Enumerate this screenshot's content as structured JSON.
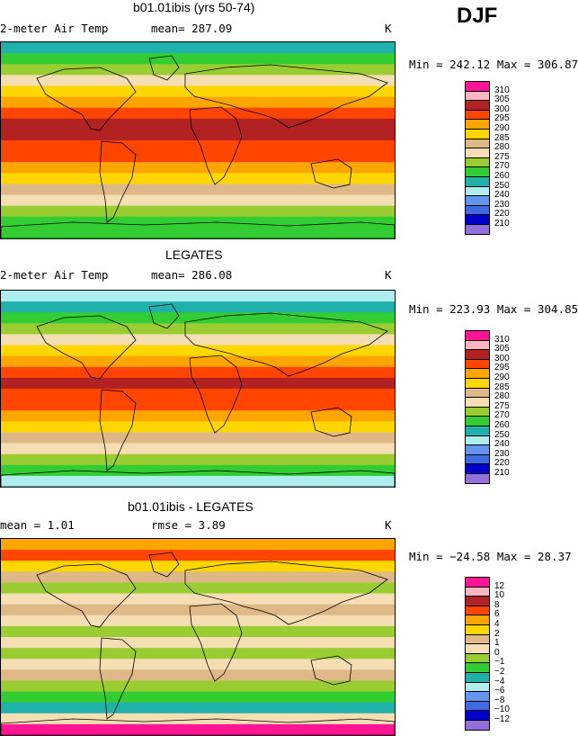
{
  "season": "DJF",
  "panels": [
    {
      "title": "b01.01ibis (yrs 50-74)",
      "left_label": "2-meter Air Temp",
      "stat_label": "mean= 287.09",
      "stat2_label": "",
      "units": "K",
      "minmax": "Min = 242.12 Max = 306.87",
      "legend_labels": [
        "310",
        "305",
        "300",
        "295",
        "290",
        "285",
        "280",
        "275",
        "270",
        "260",
        "250",
        "240",
        "230",
        "220",
        "210"
      ],
      "legend_colors": [
        "#ff1493",
        "#ffb6c1",
        "#b22222",
        "#ff4500",
        "#ffa500",
        "#ffd700",
        "#deb887",
        "#f5deb3",
        "#9acd32",
        "#32cd32",
        "#20b2aa",
        "#afeeee",
        "#6495ed",
        "#4169e1",
        "#0000cd",
        "#9370db"
      ]
    },
    {
      "title": "LEGATES",
      "left_label": "2-meter Air Temp",
      "stat_label": "mean= 286.08",
      "stat2_label": "",
      "units": "K",
      "minmax": "Min = 223.93 Max = 304.85",
      "legend_labels": [
        "310",
        "305",
        "300",
        "295",
        "290",
        "285",
        "280",
        "275",
        "270",
        "260",
        "250",
        "240",
        "230",
        "220",
        "210"
      ],
      "legend_colors": [
        "#ff1493",
        "#ffb6c1",
        "#b22222",
        "#ff4500",
        "#ffa500",
        "#ffd700",
        "#deb887",
        "#f5deb3",
        "#9acd32",
        "#32cd32",
        "#20b2aa",
        "#afeeee",
        "#6495ed",
        "#4169e1",
        "#0000cd",
        "#9370db"
      ]
    },
    {
      "title": "b01.01ibis - LEGATES",
      "left_label": "mean =    1.01",
      "stat_label": "rmse =    3.89",
      "stat2_label": "",
      "units": "K",
      "minmax": "Min = −24.58 Max =  28.37",
      "legend_labels": [
        "12",
        "10",
        "8",
        "6",
        "4",
        "2",
        "1",
        "0",
        "−1",
        "−2",
        "−4",
        "−6",
        "−8",
        "−10",
        "−12"
      ],
      "legend_colors": [
        "#ff1493",
        "#ffb6c1",
        "#b22222",
        "#ff4500",
        "#ffa500",
        "#ffd700",
        "#deb887",
        "#f5deb3",
        "#9acd32",
        "#32cd32",
        "#20b2aa",
        "#afeeee",
        "#6495ed",
        "#4169e1",
        "#0000cd",
        "#9370db"
      ]
    }
  ],
  "chart_data": [
    {
      "type": "heatmap",
      "title": "b01.01ibis (yrs 50-74)",
      "xlabel": "",
      "ylabel": "",
      "variable": "2-meter Air Temp",
      "units": "K",
      "mean": 287.09,
      "min": 242.12,
      "max": 306.87,
      "contour_levels": [
        210,
        220,
        230,
        240,
        250,
        260,
        270,
        275,
        280,
        285,
        290,
        295,
        300,
        305,
        310
      ],
      "band_values_pole_to_pole": [
        250,
        262,
        272,
        278,
        285,
        292,
        297,
        300,
        301,
        299,
        296,
        292,
        287,
        282,
        276,
        272,
        268,
        262
      ]
    },
    {
      "type": "heatmap",
      "title": "LEGATES",
      "xlabel": "",
      "ylabel": "",
      "variable": "2-meter Air Temp",
      "units": "K",
      "mean": 286.08,
      "min": 223.93,
      "max": 304.85,
      "contour_levels": [
        210,
        220,
        230,
        240,
        250,
        260,
        270,
        275,
        280,
        285,
        290,
        295,
        300,
        305,
        310
      ],
      "band_values_pole_to_pole": [
        243,
        252,
        262,
        270,
        278,
        286,
        293,
        298,
        300,
        299,
        296,
        291,
        286,
        281,
        276,
        270,
        262,
        248
      ]
    },
    {
      "type": "heatmap",
      "title": "b01.01ibis - LEGATES",
      "xlabel": "",
      "ylabel": "",
      "units": "K",
      "mean": 1.01,
      "rmse": 3.89,
      "min": -24.58,
      "max": 28.37,
      "contour_levels": [
        -12,
        -10,
        -8,
        -6,
        -4,
        -2,
        -1,
        0,
        1,
        2,
        4,
        6,
        8,
        10,
        12
      ],
      "band_values_pole_to_pole": [
        5,
        7,
        3,
        1,
        -1,
        0,
        1,
        0,
        -1,
        0,
        -1,
        0,
        1,
        -1,
        -2,
        -4,
        0,
        12
      ]
    }
  ]
}
